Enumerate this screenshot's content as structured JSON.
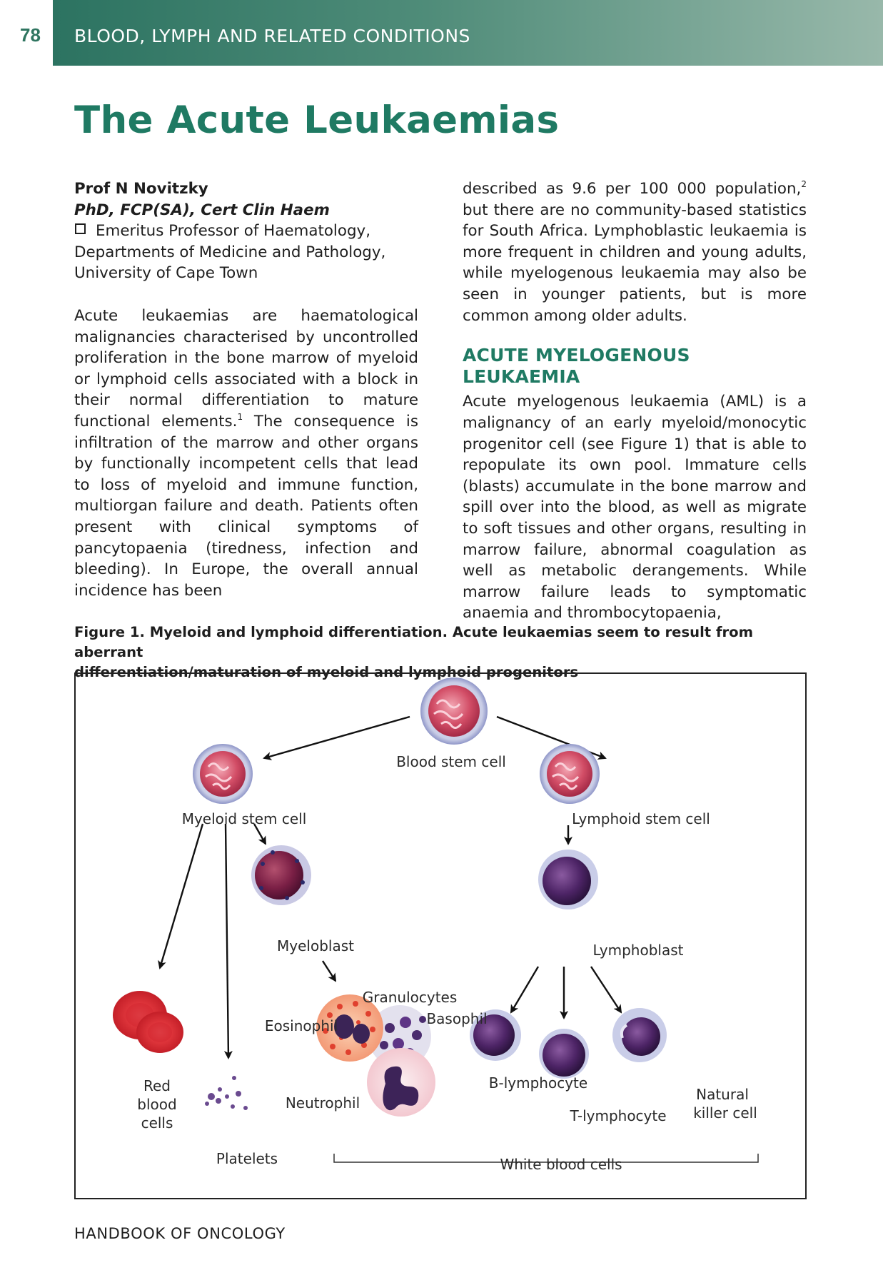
{
  "page_number": "78",
  "running_head": "BLOOD, LYMPH AND RELATED CONDITIONS",
  "title": "The Acute Leukaemias",
  "author": {
    "name": "Prof N Novitzky",
    "degrees": "PhD, FCP(SA), Cert Clin Haem",
    "affiliation_line1": "Emeritus Professor of Haematology,",
    "affiliation_line2": "Departments of Medicine and Pathology,",
    "affiliation_line3": "University of Cape Town"
  },
  "intro": {
    "part1": "Acute leukaemias are haematological malignancies characterised by uncontrolled proliferation in the bone marrow of myeloid or lymphoid cells associated with a block in their normal differentiation to mature functional elements.",
    "ref1": "1",
    "part2": " The consequence is infiltration of the marrow and other organs by functionally incompetent cells that lead to loss of myeloid and immune function, multiorgan failure and death. Patients often present with clinical symptoms of pancytopaenia (tiredness, infection and bleeding). In Europe, the overall annual incidence has been",
    "part3": "described as 9.6 per 100 000 population,",
    "ref2": "2",
    "part4": " but there are no community-based statistics for South Africa. Lymphoblastic leukaemia is more frequent in children and young adults, while myelogenous leukaemia may also be seen in younger patients, but is more common among older adults."
  },
  "aml": {
    "heading": "ACUTE MYELOGENOUS LEUKAEMIA",
    "text": "Acute myelogenous leukaemia (AML) is a malignancy of an early myeloid/monocytic progenitor cell (see Figure 1) that is able to repopulate its own pool. Immature cells (blasts) accumulate in the bone marrow and spill over into the blood, as well as migrate to soft tissues and other organs, resulting in marrow failure, abnormal coagulation as well as metabolic derangements. While marrow failure leads to symptomatic anaemia and thrombocytopaenia,"
  },
  "figure": {
    "caption_line1": "Figure 1. Myeloid and lymphoid differentiation. Acute leukaemias seem to result from aberrant",
    "caption_line2": "differentiation/maturation of myeloid and lymphoid progenitors",
    "labels": {
      "blood_stem_cell": "Blood stem cell",
      "myeloid_stem_cell": "Myeloid stem cell",
      "lymphoid_stem_cell": "Lymphoid stem cell",
      "myeloblast": "Myeloblast",
      "lymphoblast": "Lymphoblast",
      "granulocytes": "Granulocytes",
      "eosinophil": "Eosinophil",
      "basophil": "Basophil",
      "neutrophil": "Neutrophil",
      "b_lymphocyte": "B-lymphocyte",
      "t_lymphocyte": "T-lymphocyte",
      "nk_line1": "Natural",
      "nk_line2": "killer cell",
      "rbc_line1": "Red",
      "rbc_line2": "blood",
      "rbc_line3": "cells",
      "platelets": "Platelets",
      "white_blood_cells": "White blood cells"
    }
  },
  "footer": "HANDBOOK OF ONCOLOGY"
}
